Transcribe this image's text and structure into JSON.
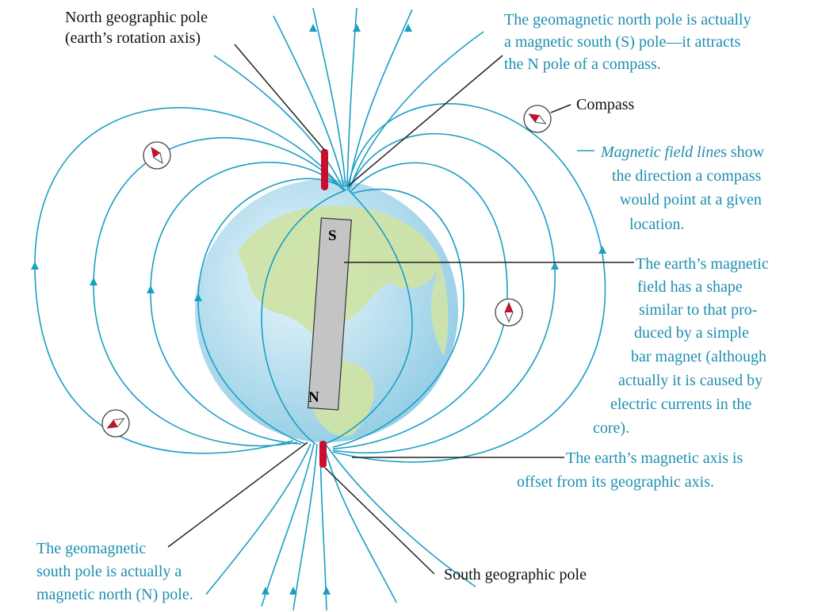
{
  "colors": {
    "field_line": "#1a9fc4",
    "annotation_blue": "#1e8fb0",
    "label_black": "#111111",
    "pole_red": "#c8102e",
    "ocean": "#bfe3f3",
    "land": "#cfe3a8",
    "magnet_gray": "#c4c4c4"
  },
  "labels": {
    "north_geo_pole": [
      "North geographic pole",
      "(earth’s rotation axis)"
    ],
    "geomagnetic_north": [
      "The geomagnetic north pole is actually",
      "a magnetic south (S) pole—it attracts",
      "the N pole of a compass."
    ],
    "compass": "Compass",
    "field_lines_italic": "Magnetic field line",
    "field_lines_rest": "s show",
    "field_lines_more": [
      "the direction a compass",
      "would point at a given",
      "location."
    ],
    "earth_field": [
      "The earth’s magnetic",
      "field has a shape",
      "similar to that pro-",
      "duced by a simple",
      "bar magnet (although",
      "actually it is caused by",
      "electric currents in the",
      "core)."
    ],
    "magnetic_axis": [
      "The earth’s magnetic axis is",
      "offset from its geographic axis."
    ],
    "geomagnetic_south": [
      "The geomagnetic",
      "south pole is actually a",
      "magnetic north (N) pole."
    ],
    "south_geo_pole": "South geographic pole",
    "magnet_S": "S",
    "magnet_N": "N"
  },
  "icons": {
    "compass": "compass-icon",
    "geographic_pole": "pole-marker",
    "bar_magnet": "bar-magnet"
  }
}
